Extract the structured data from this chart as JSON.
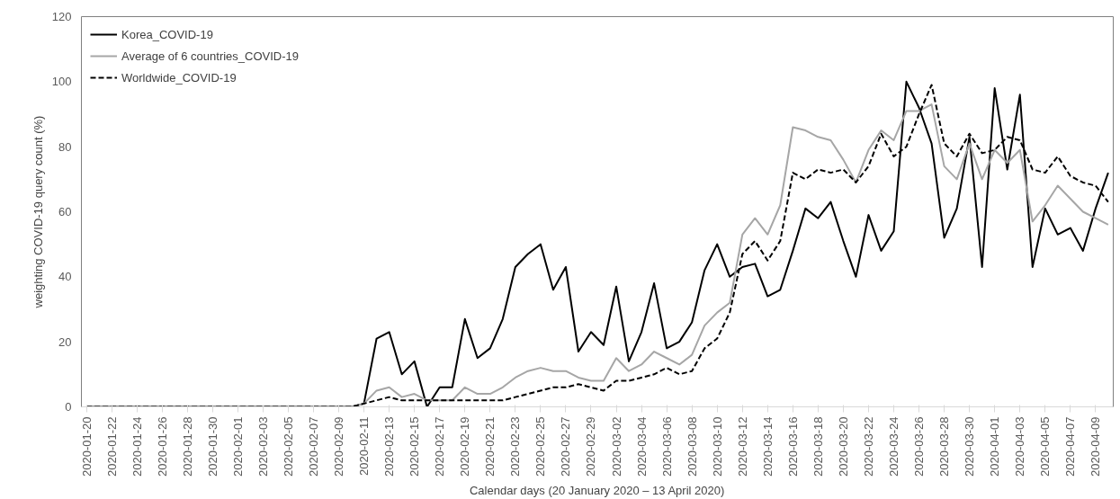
{
  "chart_data": {
    "type": "line",
    "xlabel": "Calendar days (20 January 2020 – 13 April 2020)",
    "ylabel": "weighting COVID-19 query count (%)",
    "categories": [
      "2020-01-20",
      null,
      "2020-01-22",
      null,
      "2020-01-24",
      null,
      "2020-01-26",
      null,
      "2020-01-28",
      null,
      "2020-01-30",
      null,
      "2020-02-01",
      null,
      "2020-02-03",
      null,
      "2020-02-05",
      null,
      "2020-02-07",
      null,
      "2020-02-09",
      null,
      "2020-02-11",
      null,
      "2020-02-13",
      null,
      "2020-02-15",
      null,
      "2020-02-17",
      null,
      "2020-02-19",
      null,
      "2020-02-21",
      null,
      "2020-02-23",
      null,
      "2020-02-25",
      null,
      "2020-02-27",
      null,
      "2020-02-29",
      null,
      "2020-03-02",
      null,
      "2020-03-04",
      null,
      "2020-03-06",
      null,
      "2020-03-08",
      null,
      "2020-03-10",
      null,
      "2020-03-12",
      null,
      "2020-03-14",
      null,
      "2020-03-16",
      null,
      "2020-03-18",
      null,
      "2020-03-20",
      null,
      "2020-03-22",
      null,
      "2020-03-24",
      null,
      "2020-03-26",
      null,
      "2020-03-28",
      null,
      "2020-03-30",
      null,
      "2020-04-01",
      null,
      "2020-04-03",
      null,
      "2020-04-05",
      null,
      "2020-04-07",
      null,
      "2020-04-09",
      null
    ],
    "series": [
      {
        "name": "Korea_COVID-19",
        "color": "#000000",
        "line_style": "solid",
        "values": [
          0,
          0,
          0,
          0,
          0,
          0,
          0,
          0,
          0,
          0,
          0,
          0,
          0,
          0,
          0,
          0,
          0,
          0,
          0,
          0,
          0,
          0,
          1,
          21,
          23,
          10,
          14,
          0,
          6,
          6,
          27,
          15,
          18,
          27,
          43,
          47,
          50,
          36,
          43,
          17,
          23,
          19,
          37,
          14,
          23,
          38,
          18,
          20,
          26,
          42,
          50,
          40,
          43,
          44,
          34,
          36,
          48,
          61,
          58,
          63,
          51,
          40,
          59,
          48,
          54,
          100,
          92,
          81,
          52,
          61,
          83,
          43,
          98,
          73,
          96,
          43,
          61,
          53,
          55,
          48,
          61,
          72
        ]
      },
      {
        "name": "Average of 6 countries_COVID-19",
        "color": "#a6a6a6",
        "line_style": "solid",
        "values": [
          0,
          0,
          0,
          0,
          0,
          0,
          0,
          0,
          0,
          0,
          0,
          0,
          0,
          0,
          0,
          0,
          0,
          0,
          0,
          0,
          0,
          0,
          1,
          5,
          6,
          3,
          4,
          2,
          2,
          2,
          6,
          4,
          4,
          6,
          9,
          11,
          12,
          11,
          11,
          9,
          8,
          8,
          15,
          11,
          13,
          17,
          15,
          13,
          16,
          25,
          29,
          32,
          53,
          58,
          53,
          62,
          86,
          85,
          83,
          82,
          76,
          69,
          79,
          85,
          82,
          91,
          91,
          93,
          74,
          70,
          81,
          70,
          79,
          75,
          79,
          57,
          62,
          68,
          64,
          60,
          58,
          56
        ]
      },
      {
        "name": "Worldwide_COVID-19",
        "color": "#000000",
        "line_style": "dashed",
        "values": [
          0,
          0,
          0,
          0,
          0,
          0,
          0,
          0,
          0,
          0,
          0,
          0,
          0,
          0,
          0,
          0,
          0,
          0,
          0,
          0,
          0,
          0,
          1,
          2,
          3,
          2,
          2,
          2,
          2,
          2,
          2,
          2,
          2,
          2,
          3,
          4,
          5,
          6,
          6,
          7,
          6,
          5,
          8,
          8,
          9,
          10,
          12,
          10,
          11,
          18,
          21,
          29,
          47,
          51,
          45,
          51,
          72,
          70,
          73,
          72,
          73,
          69,
          74,
          84,
          77,
          80,
          90,
          99,
          81,
          77,
          84,
          78,
          79,
          83,
          82,
          73,
          72,
          77,
          71,
          69,
          68,
          63
        ]
      }
    ],
    "ylim": [
      0,
      120
    ],
    "yticks": [
      0,
      20,
      40,
      60,
      80,
      100,
      120
    ],
    "grid": false,
    "legend": "top left"
  }
}
